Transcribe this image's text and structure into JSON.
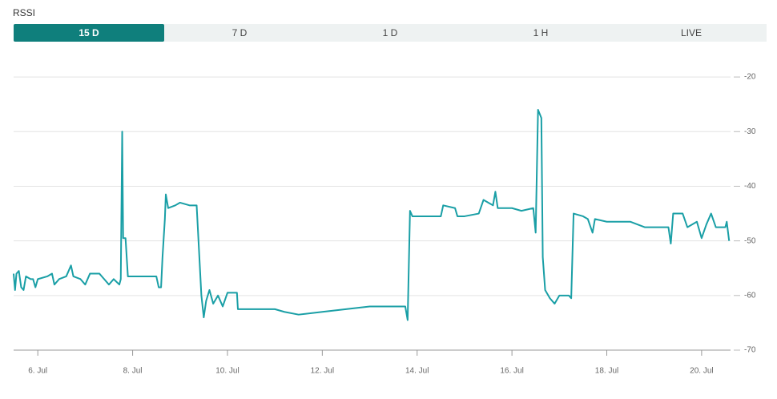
{
  "title": "RSSI",
  "tabs": [
    {
      "label": "15 D",
      "active": true
    },
    {
      "label": "7 D",
      "active": false
    },
    {
      "label": "1 D",
      "active": false
    },
    {
      "label": "1 H",
      "active": false
    },
    {
      "label": "LIVE",
      "active": false
    }
  ],
  "chart_data": {
    "type": "line",
    "grid": true,
    "xlim": [
      5.49,
      20.61
    ],
    "ylim": [
      -70,
      -15
    ],
    "xticks": [
      {
        "value": 6,
        "label": "6. Jul"
      },
      {
        "value": 8,
        "label": "8. Jul"
      },
      {
        "value": 10,
        "label": "10. Jul"
      },
      {
        "value": 12,
        "label": "12. Jul"
      },
      {
        "value": 14,
        "label": "14. Jul"
      },
      {
        "value": 16,
        "label": "16. Jul"
      },
      {
        "value": 18,
        "label": "18. Jul"
      },
      {
        "value": 20,
        "label": "20. Jul"
      }
    ],
    "yticks": [
      -70,
      -60,
      -50,
      -40,
      -30,
      -20
    ],
    "series": [
      {
        "color": "#1a9fa6",
        "x": [
          5.49,
          5.52,
          5.55,
          5.6,
          5.65,
          5.7,
          5.75,
          5.85,
          5.9,
          5.95,
          6.0,
          6.2,
          6.3,
          6.35,
          6.45,
          6.6,
          6.7,
          6.75,
          6.9,
          7.0,
          7.1,
          7.3,
          7.4,
          7.5,
          7.6,
          7.72,
          7.75,
          7.78,
          7.8,
          7.85,
          7.9,
          8.0,
          8.5,
          8.55,
          8.6,
          8.63,
          8.68,
          8.7,
          8.75,
          8.9,
          9.0,
          9.2,
          9.35,
          9.45,
          9.5,
          9.55,
          9.62,
          9.7,
          9.8,
          9.9,
          10.0,
          10.2,
          10.22,
          10.5,
          11.0,
          11.2,
          11.5,
          12.0,
          12.5,
          13.0,
          13.5,
          13.75,
          13.8,
          13.85,
          13.9,
          14.2,
          14.5,
          14.55,
          14.8,
          14.85,
          15.0,
          15.3,
          15.4,
          15.6,
          15.65,
          15.7,
          16.0,
          16.2,
          16.45,
          16.5,
          16.55,
          16.62,
          16.65,
          16.7,
          16.8,
          16.9,
          17.0,
          17.2,
          17.25,
          17.3,
          17.5,
          17.6,
          17.7,
          17.75,
          18.0,
          18.5,
          18.8,
          19.3,
          19.35,
          19.4,
          19.6,
          19.7,
          19.9,
          20.0,
          20.1,
          20.2,
          20.3,
          20.5,
          20.53,
          20.58
        ],
        "values": [
          -56,
          -59,
          -56,
          -55.5,
          -58.5,
          -59,
          -56.5,
          -57,
          -57,
          -58.5,
          -57,
          -56.5,
          -56,
          -58,
          -57,
          -56.5,
          -54.5,
          -56.5,
          -57,
          -58,
          -56,
          -56,
          -57,
          -58,
          -57,
          -58,
          -57,
          -30,
          -49.5,
          -49.5,
          -56.5,
          -56.5,
          -56.5,
          -58.5,
          -58.5,
          -53,
          -46,
          -41.5,
          -44,
          -43.5,
          -43,
          -43.5,
          -43.5,
          -60,
          -64,
          -61,
          -59,
          -61.5,
          -60,
          -62,
          -59.5,
          -59.5,
          -62.5,
          -62.5,
          -62.5,
          -63,
          -63.5,
          -63,
          -62.5,
          -62,
          -62,
          -62,
          -64.5,
          -44.5,
          -45.5,
          -45.5,
          -45.5,
          -43.5,
          -44,
          -45.5,
          -45.5,
          -45,
          -42.5,
          -43.5,
          -41,
          -44,
          -44,
          -44.5,
          -44,
          -48.5,
          -26,
          -27.5,
          -53,
          -59,
          -60.5,
          -61.5,
          -60,
          -60,
          -60.5,
          -45,
          -45.5,
          -46,
          -48.5,
          -46,
          -46.5,
          -46.5,
          -47.5,
          -47.5,
          -50.5,
          -45,
          -45,
          -47.5,
          -46.5,
          -49.5,
          -47,
          -45,
          -47.5,
          -47.5,
          -46.5,
          -50
        ]
      }
    ]
  }
}
